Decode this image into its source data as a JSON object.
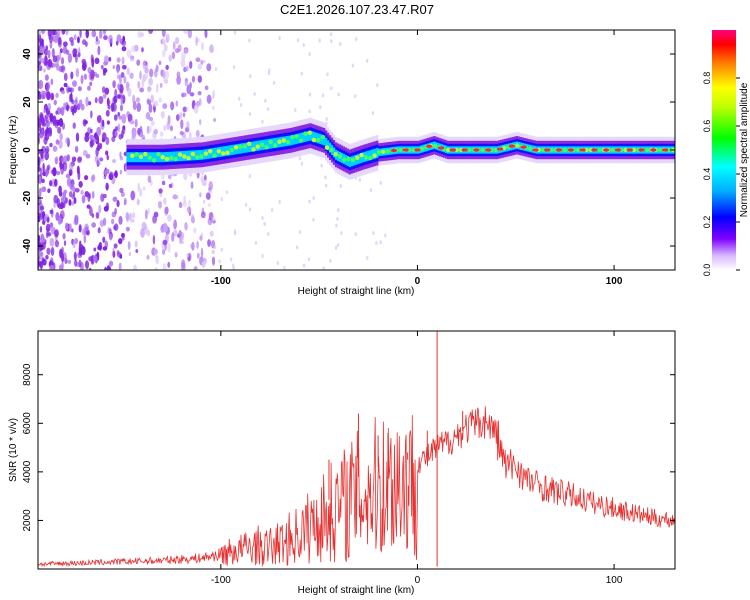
{
  "title": "C2E1.2026.107.23.47.R07",
  "charts": {
    "top": {
      "type": "heatmap",
      "xlabel": "Height of straight line (km)",
      "ylabel": "Frequency (Hz)",
      "xlim": [
        -193,
        131
      ],
      "ylim": [
        -50,
        50
      ],
      "xticks": [
        -100,
        0,
        100
      ],
      "xticklabels": [
        "-100",
        "0",
        "100"
      ],
      "yticks": [
        -40,
        -20,
        0,
        20,
        40
      ],
      "yticklabels": [
        "-40",
        "-20",
        "0",
        "20",
        "40"
      ],
      "centerline_points": [
        [
          -145,
          -3
        ],
        [
          -130,
          -3
        ],
        [
          -110,
          -2
        ],
        [
          -95,
          0
        ],
        [
          -80,
          2
        ],
        [
          -65,
          4
        ],
        [
          -55,
          6
        ],
        [
          -48,
          4
        ],
        [
          -42,
          -2
        ],
        [
          -35,
          -5
        ],
        [
          -28,
          -3
        ],
        [
          -20,
          -1
        ],
        [
          -10,
          0
        ],
        [
          0,
          0
        ],
        [
          8,
          2
        ],
        [
          15,
          0
        ],
        [
          40,
          0
        ],
        [
          50,
          2
        ],
        [
          60,
          0
        ],
        [
          131,
          0
        ]
      ]
    },
    "colorbar": {
      "label": "Normalized spectral amplitude",
      "range": [
        0,
        1
      ],
      "ticks": [
        0.0,
        0.2,
        0.4,
        0.6,
        0.8
      ],
      "ticklabels": [
        "0.0",
        "0.2",
        "0.4",
        "0.6",
        "0.8"
      ]
    },
    "bottom": {
      "type": "line",
      "xlabel": "Height of straight line (km)",
      "ylabel": "SNR (10 * v/v)",
      "xlim": [
        -193,
        131
      ],
      "ylim": [
        0,
        9800
      ],
      "xticks": [
        -100,
        0,
        100
      ],
      "xticklabels": [
        "-100",
        "0",
        "100"
      ],
      "yticks": [
        2000,
        4000,
        6000,
        8000
      ],
      "yticklabels": [
        "2000",
        "4000",
        "6000",
        "8000"
      ],
      "series": [
        {
          "name": "SNR",
          "color": "#e83030",
          "envelope": [
            [
              -193,
              200
            ],
            [
              -170,
              250
            ],
            [
              -150,
              300
            ],
            [
              -130,
              350
            ],
            [
              -110,
              450
            ],
            [
              -100,
              600
            ],
            [
              -90,
              800
            ],
            [
              -80,
              1000
            ],
            [
              -70,
              1300
            ],
            [
              -60,
              1800
            ],
            [
              -50,
              2500
            ],
            [
              -40,
              3200
            ],
            [
              -30,
              3800
            ],
            [
              -20,
              4200
            ],
            [
              -10,
              4600
            ],
            [
              0,
              4400
            ],
            [
              5,
              4600
            ],
            [
              10,
              5000
            ],
            [
              15,
              5200
            ],
            [
              20,
              5500
            ],
            [
              25,
              5800
            ],
            [
              30,
              6000
            ],
            [
              35,
              6100
            ],
            [
              40,
              5600
            ],
            [
              45,
              4200
            ],
            [
              50,
              4300
            ],
            [
              55,
              3700
            ],
            [
              60,
              3500
            ],
            [
              70,
              3200
            ],
            [
              80,
              3000
            ],
            [
              90,
              2700
            ],
            [
              100,
              2500
            ],
            [
              110,
              2300
            ],
            [
              120,
              2100
            ],
            [
              131,
              2000
            ]
          ],
          "spikes": [
            [
              10,
              9800
            ],
            [
              -30,
              6400
            ],
            [
              -45,
              4500
            ],
            [
              -20,
              5500
            ],
            [
              -15,
              5600
            ],
            [
              -5,
              4800
            ],
            [
              5,
              5700
            ],
            [
              23,
              6500
            ],
            [
              10,
              100
            ]
          ]
        }
      ]
    }
  }
}
